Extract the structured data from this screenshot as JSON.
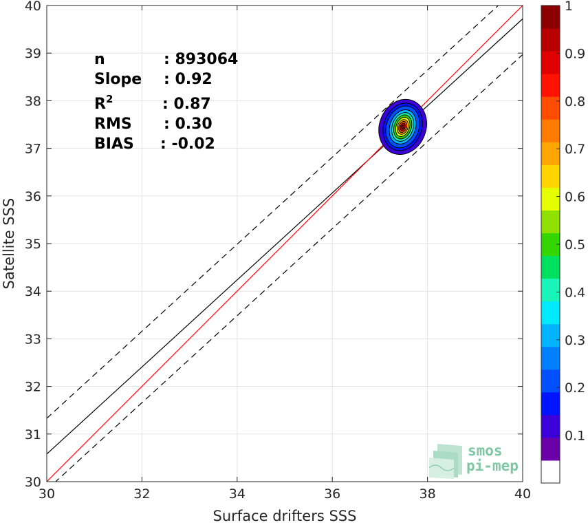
{
  "chart_data": {
    "type": "scatter",
    "xlabel": "Surface drifters SSS",
    "ylabel": "Satellite SSS",
    "xlim": [
      30,
      40
    ],
    "ylim": [
      30,
      40
    ],
    "xticks": [
      30,
      32,
      34,
      36,
      38,
      40
    ],
    "yticks": [
      30,
      31,
      32,
      33,
      34,
      35,
      36,
      37,
      38,
      39,
      40
    ],
    "grid": true,
    "stats": [
      {
        "label": "n",
        "value": ": 893064"
      },
      {
        "label": "Slope",
        "value": ": 0.92"
      },
      {
        "label": "R",
        "sup": "2",
        "value": ": 0.87"
      },
      {
        "label": "RMS",
        "value": ": 0.30"
      },
      {
        "label": "BIAS",
        "value": ": -0.02"
      }
    ],
    "identity_line": {
      "color": "#ff0000",
      "x": [
        30,
        40
      ],
      "y": [
        30,
        40
      ]
    },
    "regression_line": {
      "color": "#000000",
      "x": [
        30,
        40
      ],
      "y": [
        30.58,
        39.72
      ]
    },
    "upper_bound_line": {
      "color": "#000000",
      "style": "dashed",
      "x": [
        30,
        40
      ],
      "y": [
        31.33,
        40.47
      ]
    },
    "lower_bound_line": {
      "color": "#000000",
      "style": "dashed",
      "x": [
        30,
        40
      ],
      "y": [
        29.83,
        38.97
      ]
    },
    "density_center": {
      "x": 37.48,
      "y": 37.45
    },
    "density_levels": [
      {
        "level": 0.05,
        "rx": 0.49,
        "ry": 0.59
      },
      {
        "level": 0.1,
        "rx": 0.4,
        "ry": 0.51
      },
      {
        "level": 0.15,
        "rx": 0.34,
        "ry": 0.45
      },
      {
        "level": 0.25,
        "rx": 0.27,
        "ry": 0.37
      },
      {
        "level": 0.35,
        "rx": 0.22,
        "ry": 0.31
      },
      {
        "level": 0.45,
        "rx": 0.18,
        "ry": 0.26
      },
      {
        "level": 0.55,
        "rx": 0.14,
        "ry": 0.21
      },
      {
        "level": 0.65,
        "rx": 0.11,
        "ry": 0.16
      },
      {
        "level": 0.75,
        "rx": 0.08,
        "ry": 0.12
      },
      {
        "level": 0.85,
        "rx": 0.05,
        "ry": 0.08
      },
      {
        "level": 0.95,
        "rx": 0.025,
        "ry": 0.04
      }
    ],
    "colorbar": {
      "min": 0,
      "max": 1,
      "ticks": [
        0.1,
        0.2,
        0.3,
        0.4,
        0.5,
        0.6,
        0.7,
        0.8,
        0.9,
        1
      ],
      "tick_labels": [
        "0.1",
        "0.2",
        "0.3",
        "0.4",
        "0.5",
        "0.6",
        "0.7",
        "0.8",
        "0.9",
        "1"
      ],
      "colors": [
        "#ffffff",
        "#6a00a8",
        "#3c00d8",
        "#0014ff",
        "#0050ff",
        "#0080ff",
        "#00b4ff",
        "#00eaff",
        "#19f5b8",
        "#00e060",
        "#34d600",
        "#90e000",
        "#e6ff00",
        "#ffd500",
        "#ffa500",
        "#ff7c00",
        "#ff4d00",
        "#ff1200",
        "#e00000",
        "#b80000",
        "#8c0000"
      ]
    }
  },
  "logo": {
    "line1": "smos",
    "line2": "pi-mep"
  }
}
